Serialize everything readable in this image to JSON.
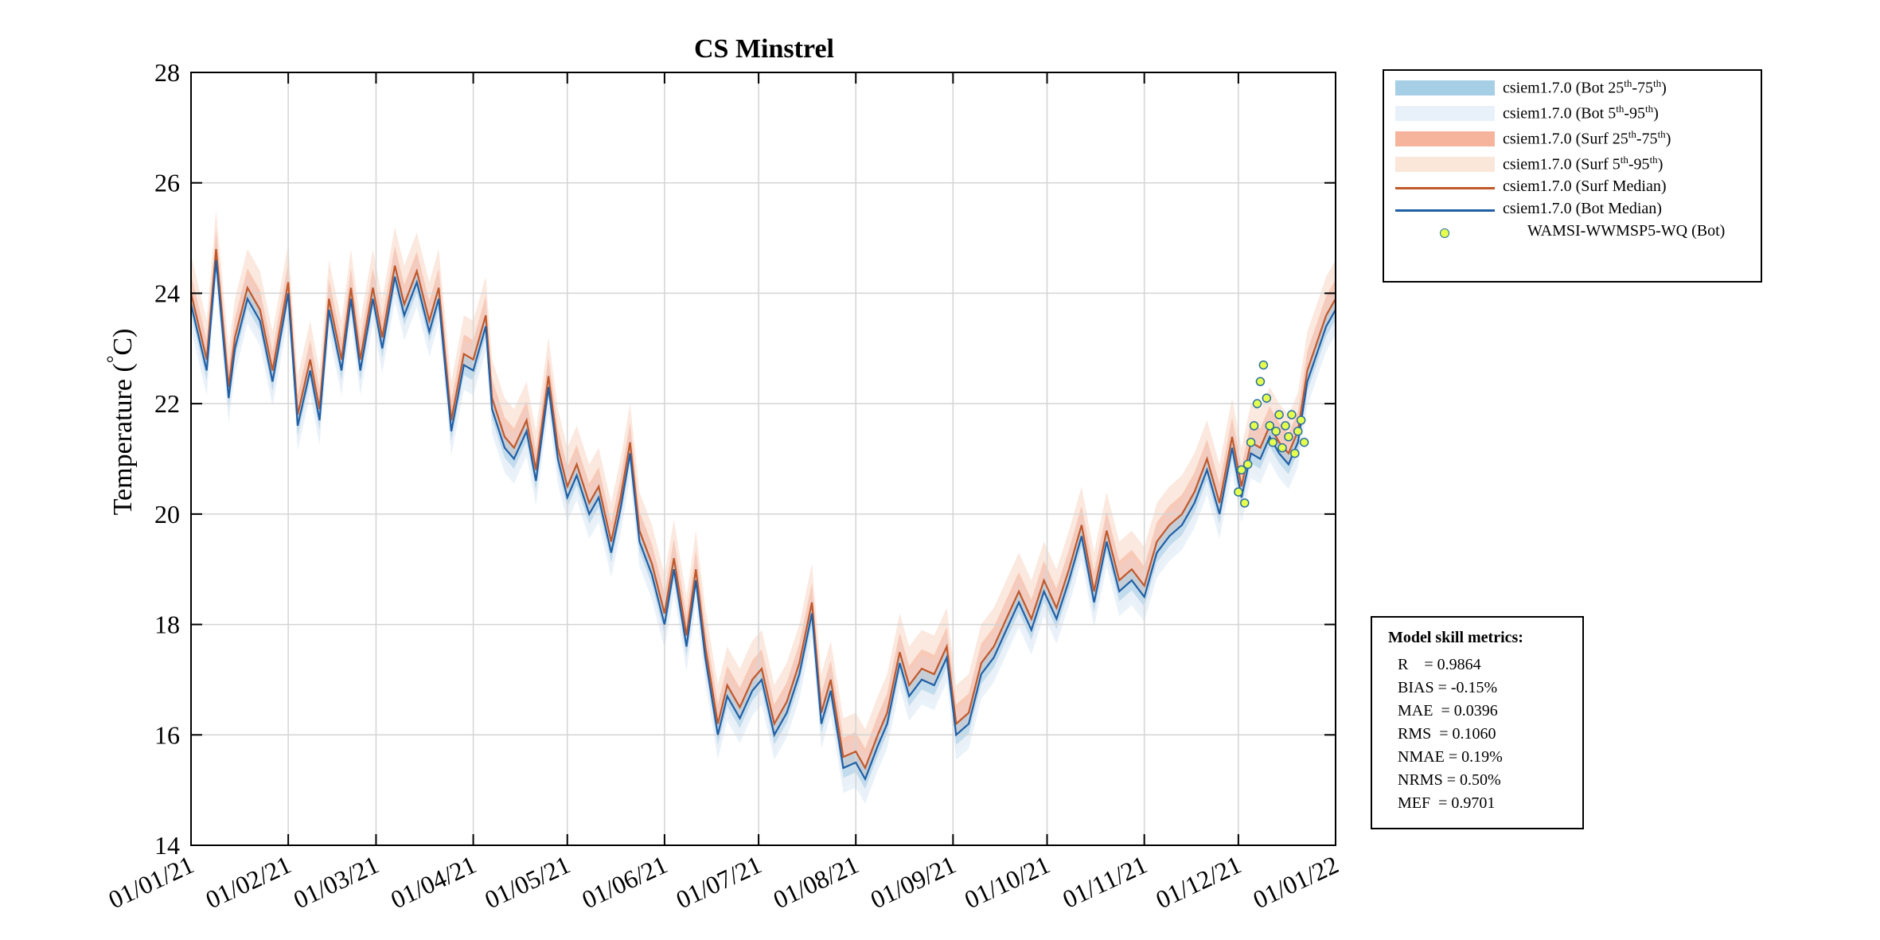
{
  "chart_data": {
    "type": "line",
    "title": "CS Minstrel",
    "ylabel": "Temperature (°C)",
    "ylabel_text": "Temperature (",
    "ylabel_unit": "C)",
    "ylabel_degree": "°",
    "xlabel": "",
    "ylim": [
      14,
      28
    ],
    "yticks": [
      14,
      16,
      18,
      20,
      22,
      24,
      26,
      28
    ],
    "xlim": [
      "2021-01-01",
      "2022-01-01"
    ],
    "xtick_labels": [
      "01/01/21",
      "01/02/21",
      "01/03/21",
      "01/04/21",
      "01/05/21",
      "01/06/21",
      "01/07/21",
      "01/08/21",
      "01/09/21",
      "01/10/21",
      "01/11/21",
      "01/12/21",
      "01/01/22"
    ],
    "xticks": [
      "2021-01-01",
      "2021-02-01",
      "2021-03-01",
      "2021-04-01",
      "2021-05-01",
      "2021-06-01",
      "2021-07-01",
      "2021-08-01",
      "2021-09-01",
      "2021-10-01",
      "2021-11-01",
      "2021-12-01",
      "2022-01-01"
    ],
    "grid": true,
    "legend_position": "outside-top-right",
    "series": [
      {
        "name": "csiem1.7.0 (Bot Median)",
        "color": "#1f5fa6",
        "x": [
          "2021-01-01",
          "2021-01-06",
          "2021-01-09",
          "2021-01-13",
          "2021-01-15",
          "2021-01-19",
          "2021-01-23",
          "2021-01-27",
          "2021-02-01",
          "2021-02-04",
          "2021-02-08",
          "2021-02-11",
          "2021-02-14",
          "2021-02-18",
          "2021-02-21",
          "2021-02-24",
          "2021-02-28",
          "2021-03-03",
          "2021-03-07",
          "2021-03-10",
          "2021-03-14",
          "2021-03-18",
          "2021-03-21",
          "2021-03-25",
          "2021-03-29",
          "2021-04-01",
          "2021-04-05",
          "2021-04-07",
          "2021-04-11",
          "2021-04-14",
          "2021-04-18",
          "2021-04-21",
          "2021-04-25",
          "2021-04-28",
          "2021-05-01",
          "2021-05-04",
          "2021-05-08",
          "2021-05-11",
          "2021-05-15",
          "2021-05-18",
          "2021-05-21",
          "2021-05-24",
          "2021-05-28",
          "2021-06-01",
          "2021-06-04",
          "2021-06-08",
          "2021-06-11",
          "2021-06-14",
          "2021-06-18",
          "2021-06-21",
          "2021-06-25",
          "2021-06-29",
          "2021-07-02",
          "2021-07-06",
          "2021-07-10",
          "2021-07-14",
          "2021-07-18",
          "2021-07-21",
          "2021-07-24",
          "2021-07-28",
          "2021-08-01",
          "2021-08-04",
          "2021-08-08",
          "2021-08-11",
          "2021-08-15",
          "2021-08-18",
          "2021-08-22",
          "2021-08-26",
          "2021-08-30",
          "2021-09-02",
          "2021-09-06",
          "2021-09-10",
          "2021-09-14",
          "2021-09-18",
          "2021-09-22",
          "2021-09-26",
          "2021-09-30",
          "2021-10-04",
          "2021-10-08",
          "2021-10-12",
          "2021-10-16",
          "2021-10-20",
          "2021-10-24",
          "2021-10-28",
          "2021-11-01",
          "2021-11-05",
          "2021-11-09",
          "2021-11-13",
          "2021-11-17",
          "2021-11-21",
          "2021-11-25",
          "2021-11-29",
          "2021-12-02",
          "2021-12-05",
          "2021-12-08",
          "2021-12-11",
          "2021-12-14",
          "2021-12-17",
          "2021-12-20",
          "2021-12-23",
          "2021-12-26",
          "2021-12-29",
          "2022-01-01"
        ],
        "values": [
          23.8,
          22.6,
          24.6,
          22.1,
          23.0,
          23.9,
          23.5,
          22.4,
          24.0,
          21.6,
          22.6,
          21.7,
          23.7,
          22.6,
          23.9,
          22.6,
          23.9,
          23.0,
          24.3,
          23.6,
          24.2,
          23.3,
          23.9,
          21.5,
          22.7,
          22.6,
          23.4,
          21.9,
          21.2,
          21.0,
          21.5,
          20.6,
          22.3,
          21.0,
          20.3,
          20.7,
          20.0,
          20.3,
          19.3,
          20.1,
          21.1,
          19.5,
          18.9,
          18.0,
          19.0,
          17.6,
          18.8,
          17.4,
          16.0,
          16.7,
          16.3,
          16.8,
          17.0,
          16.0,
          16.4,
          17.1,
          18.2,
          16.2,
          16.8,
          15.4,
          15.5,
          15.2,
          15.8,
          16.2,
          17.3,
          16.7,
          17.0,
          16.9,
          17.4,
          16.0,
          16.2,
          17.1,
          17.4,
          17.9,
          18.4,
          17.9,
          18.6,
          18.1,
          18.8,
          19.6,
          18.4,
          19.5,
          18.6,
          18.8,
          18.5,
          19.3,
          19.6,
          19.8,
          20.2,
          20.8,
          20.0,
          21.2,
          20.3,
          21.1,
          21.0,
          21.4,
          21.1,
          20.9,
          21.3,
          22.4,
          22.9,
          23.4,
          23.7
        ]
      },
      {
        "name": "csiem1.7.0 (Surf Median)",
        "color": "#c0582a",
        "x": [
          "2021-01-01",
          "2021-01-06",
          "2021-01-09",
          "2021-01-13",
          "2021-01-15",
          "2021-01-19",
          "2021-01-23",
          "2021-01-27",
          "2021-02-01",
          "2021-02-04",
          "2021-02-08",
          "2021-02-11",
          "2021-02-14",
          "2021-02-18",
          "2021-02-21",
          "2021-02-24",
          "2021-02-28",
          "2021-03-03",
          "2021-03-07",
          "2021-03-10",
          "2021-03-14",
          "2021-03-18",
          "2021-03-21",
          "2021-03-25",
          "2021-03-29",
          "2021-04-01",
          "2021-04-05",
          "2021-04-07",
          "2021-04-11",
          "2021-04-14",
          "2021-04-18",
          "2021-04-21",
          "2021-04-25",
          "2021-04-28",
          "2021-05-01",
          "2021-05-04",
          "2021-05-08",
          "2021-05-11",
          "2021-05-15",
          "2021-05-18",
          "2021-05-21",
          "2021-05-24",
          "2021-05-28",
          "2021-06-01",
          "2021-06-04",
          "2021-06-08",
          "2021-06-11",
          "2021-06-14",
          "2021-06-18",
          "2021-06-21",
          "2021-06-25",
          "2021-06-29",
          "2021-07-02",
          "2021-07-06",
          "2021-07-10",
          "2021-07-14",
          "2021-07-18",
          "2021-07-21",
          "2021-07-24",
          "2021-07-28",
          "2021-08-01",
          "2021-08-04",
          "2021-08-08",
          "2021-08-11",
          "2021-08-15",
          "2021-08-18",
          "2021-08-22",
          "2021-08-26",
          "2021-08-30",
          "2021-09-02",
          "2021-09-06",
          "2021-09-10",
          "2021-09-14",
          "2021-09-18",
          "2021-09-22",
          "2021-09-26",
          "2021-09-30",
          "2021-10-04",
          "2021-10-08",
          "2021-10-12",
          "2021-10-16",
          "2021-10-20",
          "2021-10-24",
          "2021-10-28",
          "2021-11-01",
          "2021-11-05",
          "2021-11-09",
          "2021-11-13",
          "2021-11-17",
          "2021-11-21",
          "2021-11-25",
          "2021-11-29",
          "2021-12-02",
          "2021-12-05",
          "2021-12-08",
          "2021-12-11",
          "2021-12-14",
          "2021-12-17",
          "2021-12-20",
          "2021-12-23",
          "2021-12-26",
          "2021-12-29",
          "2022-01-01"
        ],
        "values": [
          24.0,
          22.8,
          24.8,
          22.3,
          23.2,
          24.1,
          23.7,
          22.6,
          24.2,
          21.8,
          22.8,
          21.9,
          23.9,
          22.8,
          24.1,
          22.8,
          24.1,
          23.2,
          24.5,
          23.8,
          24.4,
          23.5,
          24.1,
          21.7,
          22.9,
          22.8,
          23.6,
          22.1,
          21.4,
          21.2,
          21.7,
          20.8,
          22.5,
          21.2,
          20.5,
          20.9,
          20.2,
          20.5,
          19.5,
          20.3,
          21.3,
          19.7,
          19.1,
          18.2,
          19.2,
          17.8,
          19.0,
          17.6,
          16.2,
          16.9,
          16.5,
          17.0,
          17.2,
          16.2,
          16.6,
          17.3,
          18.4,
          16.4,
          17.0,
          15.6,
          15.7,
          15.4,
          16.0,
          16.4,
          17.5,
          16.9,
          17.2,
          17.1,
          17.6,
          16.2,
          16.4,
          17.3,
          17.6,
          18.1,
          18.6,
          18.1,
          18.8,
          18.3,
          19.0,
          19.8,
          18.6,
          19.7,
          18.8,
          19.0,
          18.7,
          19.5,
          19.8,
          20.0,
          20.4,
          21.0,
          20.2,
          21.4,
          20.5,
          21.3,
          21.2,
          21.6,
          21.3,
          21.1,
          21.5,
          22.6,
          23.1,
          23.6,
          23.9
        ]
      },
      {
        "name": "WAMSI-WWMSP5-WQ (Bot)",
        "type": "scatter",
        "color": "#e6ff4d",
        "edge_color": "#2a6f9e",
        "x": [
          "2021-12-01",
          "2021-12-02",
          "2021-12-03",
          "2021-12-04",
          "2021-12-05",
          "2021-12-06",
          "2021-12-07",
          "2021-12-08",
          "2021-12-09",
          "2021-12-10",
          "2021-12-11",
          "2021-12-12",
          "2021-12-13",
          "2021-12-14",
          "2021-12-15",
          "2021-12-16",
          "2021-12-17",
          "2021-12-18",
          "2021-12-19",
          "2021-12-20",
          "2021-12-21",
          "2021-12-22"
        ],
        "values": [
          20.4,
          20.8,
          20.2,
          20.9,
          21.3,
          21.6,
          22.0,
          22.4,
          22.7,
          22.1,
          21.6,
          21.3,
          21.5,
          21.8,
          21.2,
          21.6,
          21.4,
          21.8,
          21.1,
          21.5,
          21.7,
          21.3
        ]
      }
    ],
    "bands": [
      {
        "name": "csiem1.7.0 (Bot 25th-75th)",
        "color": "#a6cfe6"
      },
      {
        "name": "csiem1.7.0 (Bot 5th-95th)",
        "color": "#e8f1f9"
      },
      {
        "name": "csiem1.7.0 (Surf 25th-75th)",
        "color": "#f7b49c"
      },
      {
        "name": "csiem1.7.0 (Surf 5th-95th)",
        "color": "#fbe6da"
      }
    ]
  },
  "legend": {
    "items": [
      {
        "kind": "patch",
        "color": "#a6cfe6",
        "base": "csiem1.7.0 (Bot 25",
        "s1": "th",
        "mid": "-75",
        "s2": "th",
        "end": ")"
      },
      {
        "kind": "patch",
        "color": "#e8f1f9",
        "base": "csiem1.7.0 (Bot 5",
        "s1": "th",
        "mid": "-95",
        "s2": "th",
        "end": ")"
      },
      {
        "kind": "patch",
        "color": "#f7b49c",
        "base": "csiem1.7.0 (Surf 25",
        "s1": "th",
        "mid": "-75",
        "s2": "th",
        "end": ")"
      },
      {
        "kind": "patch",
        "color": "#fbe6da",
        "base": "csiem1.7.0 (Surf 5",
        "s1": "th",
        "mid": "-95",
        "s2": "th",
        "end": ")"
      },
      {
        "kind": "line",
        "color": "#c0582a",
        "base": "csiem1.7.0 (Surf Median)",
        "s1": "",
        "mid": "",
        "s2": "",
        "end": ""
      },
      {
        "kind": "line",
        "color": "#1f5fa6",
        "base": "csiem1.7.0 (Bot Median)",
        "s1": "",
        "mid": "",
        "s2": "",
        "end": ""
      },
      {
        "kind": "marker",
        "color": "#e6ff4d",
        "base": "WAMSI-WWMSP5-WQ (Bot)",
        "s1": "",
        "mid": "",
        "s2": "",
        "end": ""
      }
    ]
  },
  "metrics": {
    "title": "Model skill metrics:",
    "lines": [
      "R    = 0.9864",
      "BIAS = -0.15%",
      "MAE  = 0.0396",
      "RMS  = 0.1060",
      "NMAE = 0.19%",
      "NRMS = 0.50%",
      "MEF  = 0.9701"
    ]
  }
}
